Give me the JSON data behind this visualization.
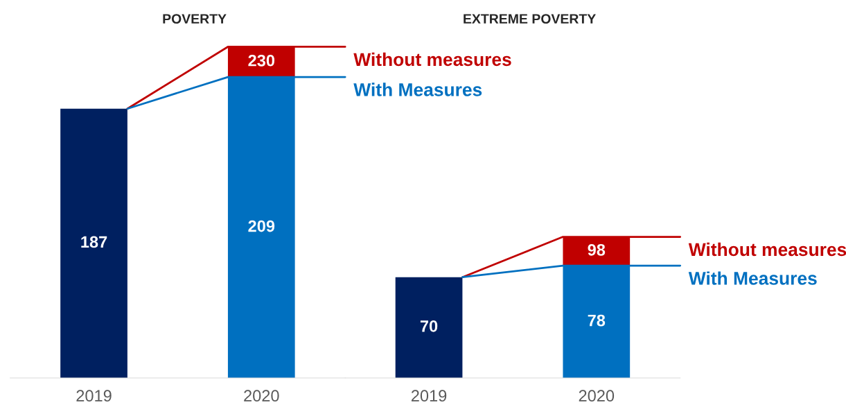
{
  "chart_data": [
    {
      "type": "bar",
      "title": "POVERTY",
      "categories": [
        "2019",
        "2020"
      ],
      "stacked": true,
      "tick_labels": "x",
      "totals": [
        null,
        "230"
      ],
      "series": [
        {
          "colors": [
            "#002060",
            "#0070c0"
          ],
          "values": [
            187,
            209
          ],
          "value_labels": [
            "187",
            "209"
          ]
        },
        {
          "color": "#c00000",
          "values": [
            null,
            21
          ]
        }
      ],
      "annotations": [
        "Without measures",
        "With Measures"
      ]
    },
    {
      "type": "bar",
      "title": "EXTREME POVERTY",
      "categories": [
        "2019",
        "2020"
      ],
      "stacked": true,
      "tick_labels": "x",
      "totals": [
        null,
        "98"
      ],
      "series": [
        {
          "colors": [
            "#002060",
            "#0070c0"
          ],
          "values": [
            70,
            78
          ],
          "value_labels": [
            "70",
            "78"
          ]
        },
        {
          "color": "#c00000",
          "values": [
            null,
            20
          ]
        }
      ],
      "annotations": [
        "Without measures",
        "With Measures"
      ]
    }
  ]
}
